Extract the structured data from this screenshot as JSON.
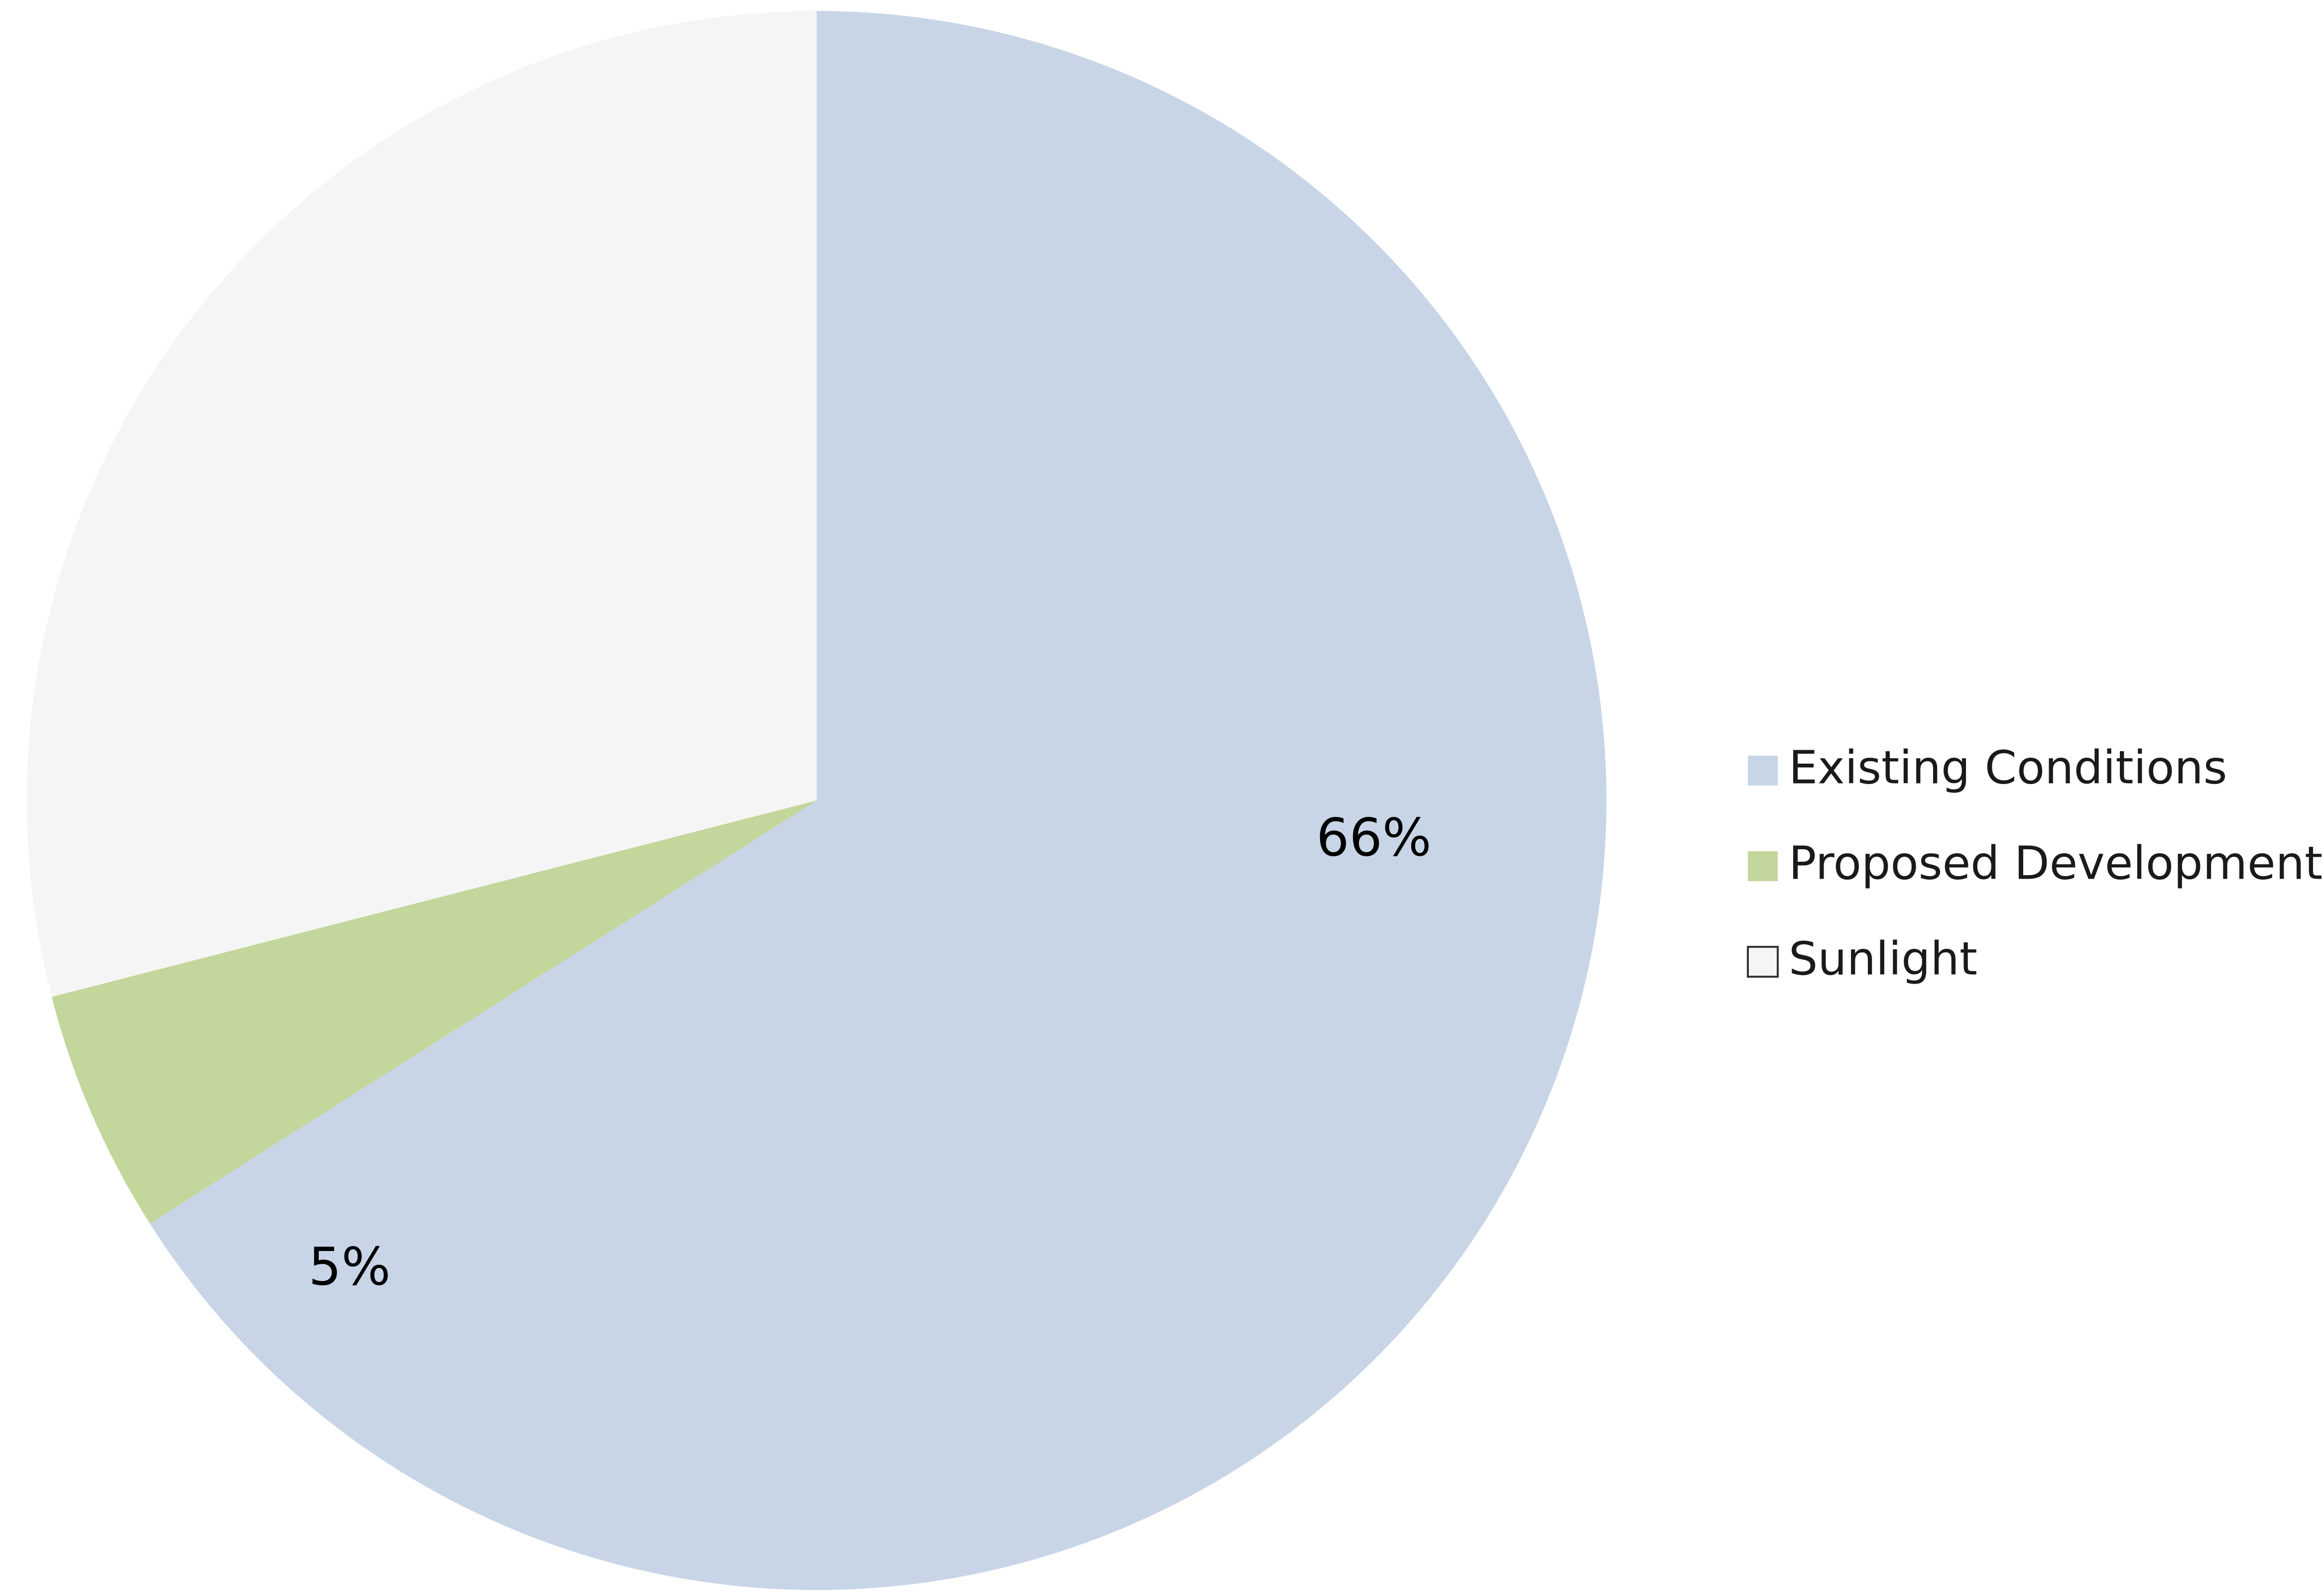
{
  "chart_data": {
    "type": "pie",
    "categories": [
      "Existing Conditions",
      "Proposed Development",
      "Sunlight"
    ],
    "values": [
      66,
      5,
      29
    ],
    "value_labels": [
      "66%",
      "5%",
      null
    ],
    "colors": [
      "#c7d5e7",
      "#c3d69b",
      "#f5f5f5"
    ],
    "legend": "right"
  }
}
